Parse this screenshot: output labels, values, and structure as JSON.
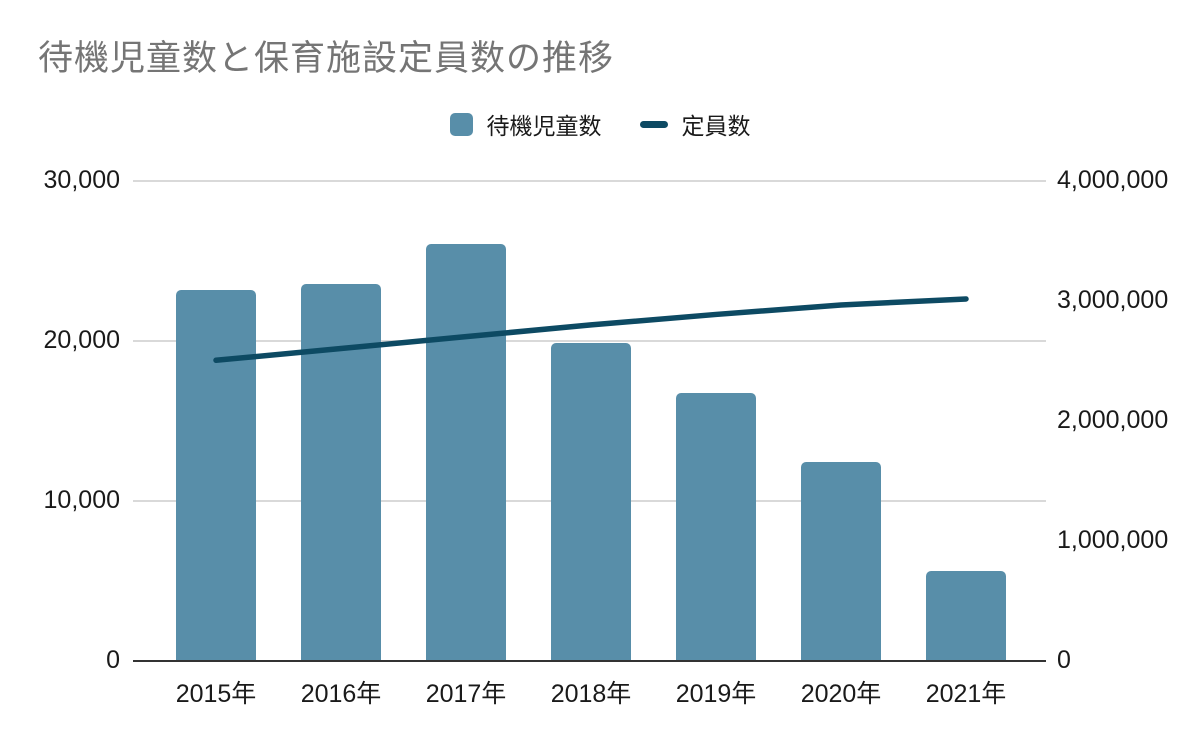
{
  "title": "待機児童数と保育施設定員数の推移",
  "legend": [
    {
      "label": "待機児童数",
      "type": "bar"
    },
    {
      "label": "定員数",
      "type": "line"
    }
  ],
  "colors": {
    "bar": "#588ea9",
    "line": "#0d4a63",
    "grid": "#d9d9d9",
    "axis": "#333333",
    "title": "#757575",
    "text": "#1a1a1a",
    "background": "#ffffff"
  },
  "chart_data": {
    "type": "combo-bar-line",
    "title": "待機児童数と保育施設定員数の推移",
    "categories": [
      "2015年",
      "2016年",
      "2017年",
      "2018年",
      "2019年",
      "2020年",
      "2021年"
    ],
    "series": [
      {
        "name": "待機児童数",
        "type": "bar",
        "axis": "left",
        "values": [
          23167,
          23553,
          26081,
          19895,
          16772,
          12439,
          5634
        ]
      },
      {
        "name": "定員数",
        "type": "line",
        "axis": "right",
        "values": [
          2506000,
          2604000,
          2703000,
          2801000,
          2888000,
          2967000,
          3017000
        ]
      }
    ],
    "left_axis": {
      "range": [
        0,
        30000
      ],
      "ticks": [
        0,
        10000,
        20000,
        30000
      ],
      "tick_labels": [
        "0",
        "10,000",
        "20,000",
        "30,000"
      ]
    },
    "right_axis": {
      "range": [
        0,
        4000000
      ],
      "ticks": [
        0,
        1000000,
        2000000,
        3000000,
        4000000
      ],
      "tick_labels": [
        "0",
        "1,000,000",
        "2,000,000",
        "3,000,000",
        "4,000,000"
      ]
    },
    "grid": true,
    "legend_position": "top"
  }
}
